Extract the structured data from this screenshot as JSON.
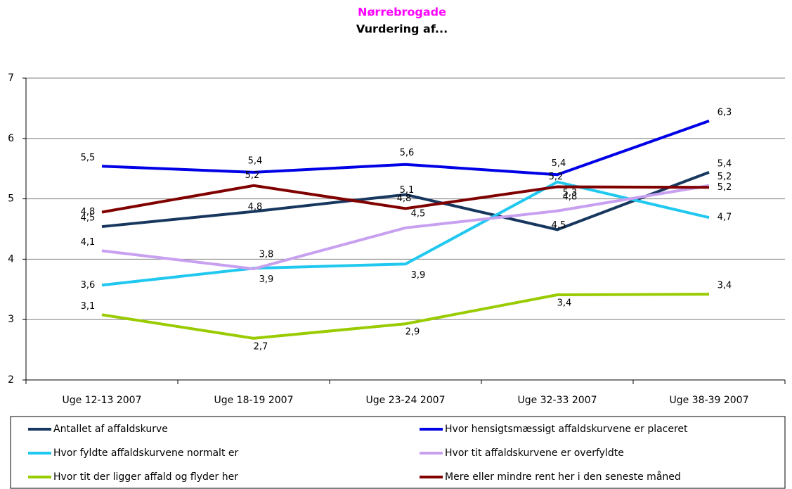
{
  "chart_data": {
    "type": "line",
    "title": "Nørrebrogade",
    "subtitle": "Vurdering af...",
    "title_color": "#ff00ff",
    "categories": [
      "Uge 12-13 2007",
      "Uge 18-19 2007",
      "Uge 23-24 2007",
      "Uge 32-33 2007",
      "Uge 38-39 2007"
    ],
    "ylim": [
      2,
      7
    ],
    "yticks": [
      2,
      3,
      4,
      5,
      6,
      7
    ],
    "grid": true,
    "series": [
      {
        "name": "Antallet af affaldskurve",
        "color": "#17375e",
        "values": [
          4.54,
          4.79,
          5.07,
          4.49,
          5.44
        ],
        "value_labels": [
          "4,5",
          "4,8",
          "5,1",
          "4,5",
          "5,4"
        ]
      },
      {
        "name": "Hvor hensigtsmæssigt affaldskurvene er placeret",
        "color": "#0000e6",
        "values": [
          5.54,
          5.44,
          5.57,
          5.4,
          6.29
        ],
        "value_labels": [
          "5,5",
          "5,4",
          "5,6",
          "5,4",
          "6,3"
        ]
      },
      {
        "name": "Hvor fyldte affaldskurvene normalt er",
        "color": "#20c8f0",
        "values": [
          3.57,
          3.85,
          3.92,
          5.28,
          4.69
        ],
        "value_labels": [
          "3,6",
          "3,9",
          "3,9",
          "5,3",
          "4,7"
        ]
      },
      {
        "name": "Hvor tit affaldskurvene er overfyldte",
        "color": "#c8a0f0",
        "values": [
          4.14,
          3.84,
          4.52,
          4.8,
          5.22
        ],
        "value_labels": [
          "4,1",
          "3,8",
          "4,5",
          "4,8",
          "5,2"
        ]
      },
      {
        "name": "Hvor tit der ligger affald og flyder her",
        "color": "#99cc00",
        "values": [
          3.08,
          2.69,
          2.93,
          3.41,
          3.42
        ],
        "value_labels": [
          "3,1",
          "2,7",
          "2,9",
          "3,4",
          "3,4"
        ]
      },
      {
        "name": "Mere eller mindre rent her i den seneste måned",
        "color": "#800000",
        "values": [
          4.78,
          5.22,
          4.84,
          5.2,
          5.19
        ],
        "value_labels": [
          "4,8",
          "5,2",
          "4,8",
          "5,2",
          "5,2"
        ]
      }
    ]
  }
}
